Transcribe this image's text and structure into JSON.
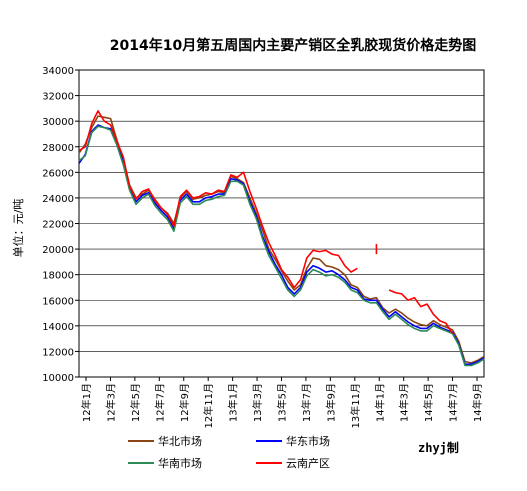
{
  "chart_data": {
    "type": "line",
    "title": "2014年10月第五周国内主要产销区全乳胶现货价格走势图",
    "ylabel": "单位：元/吨",
    "xlabel": "",
    "ylim": [
      10000,
      34000
    ],
    "yticks": [
      10000,
      12000,
      14000,
      16000,
      18000,
      20000,
      22000,
      24000,
      26000,
      28000,
      30000,
      32000,
      34000
    ],
    "x_tick_labels": [
      "12年1月",
      "12年3月",
      "12年5月",
      "12年7月",
      "12年9月",
      "12年11月",
      "13年1月",
      "13年3月",
      "13年5月",
      "13年7月",
      "13年9月",
      "13年11月",
      "14年1月",
      "14年3月",
      "14年5月",
      "14年7月",
      "14年9月"
    ],
    "grid": true,
    "legend_position": "bottom",
    "series": [
      {
        "name": "华北市场",
        "color": "#8B4513",
        "points": [
          [
            0,
            27500
          ],
          [
            0.5,
            28200
          ],
          [
            1,
            29500
          ],
          [
            1.5,
            30400
          ],
          [
            2,
            30300
          ],
          [
            2.5,
            30200
          ],
          [
            3,
            28500
          ],
          [
            3.5,
            27000
          ],
          [
            4,
            25000
          ],
          [
            4.5,
            24000
          ],
          [
            5,
            24300
          ],
          [
            5.5,
            24600
          ],
          [
            6,
            23900
          ],
          [
            6.5,
            23200
          ],
          [
            7,
            22800
          ],
          [
            7.5,
            22000
          ],
          [
            8,
            24000
          ],
          [
            8.5,
            24500
          ],
          [
            9,
            23900
          ],
          [
            9.5,
            24000
          ],
          [
            10,
            24200
          ],
          [
            10.5,
            24300
          ],
          [
            11,
            24500
          ],
          [
            11.5,
            24400
          ],
          [
            12,
            25700
          ],
          [
            12.5,
            25500
          ],
          [
            13,
            25200
          ],
          [
            13.5,
            24000
          ],
          [
            14,
            22800
          ],
          [
            14.5,
            21500
          ],
          [
            15,
            20000
          ],
          [
            15.5,
            19200
          ],
          [
            16,
            18300
          ],
          [
            16.5,
            17500
          ],
          [
            17,
            16800
          ],
          [
            17.5,
            17200
          ],
          [
            18,
            18500
          ],
          [
            18.5,
            19300
          ],
          [
            19,
            19200
          ],
          [
            19.5,
            18700
          ],
          [
            20,
            18600
          ],
          [
            20.5,
            18400
          ],
          [
            21,
            18000
          ],
          [
            21.5,
            17200
          ],
          [
            22,
            17000
          ],
          [
            22.5,
            16300
          ],
          [
            23,
            16100
          ],
          [
            23.5,
            16200
          ],
          [
            24,
            15400
          ],
          [
            24.5,
            15000
          ],
          [
            25,
            15300
          ],
          [
            25.5,
            15000
          ],
          [
            26,
            14600
          ],
          [
            26.5,
            14300
          ],
          [
            27,
            14100
          ],
          [
            27.5,
            14000
          ],
          [
            28,
            14400
          ],
          [
            28.5,
            14100
          ],
          [
            29,
            13900
          ],
          [
            29.5,
            13700
          ],
          [
            30,
            12800
          ],
          [
            30.5,
            11200
          ],
          [
            31,
            11100
          ],
          [
            31.5,
            11300
          ],
          [
            32,
            11600
          ]
        ]
      },
      {
        "name": "华东市场",
        "color": "#0000FF",
        "points": [
          [
            0,
            26700
          ],
          [
            0.5,
            27400
          ],
          [
            1,
            29200
          ],
          [
            1.5,
            29700
          ],
          [
            2,
            29500
          ],
          [
            2.5,
            29400
          ],
          [
            3,
            28200
          ],
          [
            3.5,
            26800
          ],
          [
            4,
            24800
          ],
          [
            4.5,
            23700
          ],
          [
            5,
            24200
          ],
          [
            5.5,
            24400
          ],
          [
            6,
            23600
          ],
          [
            6.5,
            23000
          ],
          [
            7,
            22500
          ],
          [
            7.5,
            21600
          ],
          [
            8,
            23800
          ],
          [
            8.5,
            24300
          ],
          [
            9,
            23700
          ],
          [
            9.5,
            23700
          ],
          [
            10,
            24000
          ],
          [
            10.5,
            24100
          ],
          [
            11,
            24300
          ],
          [
            11.5,
            24300
          ],
          [
            12,
            25500
          ],
          [
            12.5,
            25400
          ],
          [
            13,
            25100
          ],
          [
            13.5,
            23700
          ],
          [
            14,
            22600
          ],
          [
            14.5,
            21000
          ],
          [
            15,
            19800
          ],
          [
            15.5,
            18800
          ],
          [
            16,
            18000
          ],
          [
            16.5,
            17000
          ],
          [
            17,
            16500
          ],
          [
            17.5,
            17000
          ],
          [
            18,
            18200
          ],
          [
            18.5,
            18700
          ],
          [
            19,
            18500
          ],
          [
            19.5,
            18200
          ],
          [
            20,
            18300
          ],
          [
            20.5,
            18000
          ],
          [
            21,
            17600
          ],
          [
            21.5,
            17000
          ],
          [
            22,
            16800
          ],
          [
            22.5,
            16100
          ],
          [
            23,
            16000
          ],
          [
            23.5,
            16000
          ],
          [
            24,
            15300
          ],
          [
            24.5,
            14700
          ],
          [
            25,
            15100
          ],
          [
            25.5,
            14700
          ],
          [
            26,
            14300
          ],
          [
            26.5,
            14000
          ],
          [
            27,
            13800
          ],
          [
            27.5,
            13800
          ],
          [
            28,
            14200
          ],
          [
            28.5,
            13900
          ],
          [
            29,
            13700
          ],
          [
            29.5,
            13500
          ],
          [
            30,
            12600
          ],
          [
            30.5,
            11000
          ],
          [
            31,
            11000
          ],
          [
            31.5,
            11200
          ],
          [
            32,
            11500
          ]
        ]
      },
      {
        "name": "华南市场",
        "color": "#2E8B57",
        "points": [
          [
            0,
            26900
          ],
          [
            0.5,
            27300
          ],
          [
            1,
            29100
          ],
          [
            1.5,
            29600
          ],
          [
            2,
            29500
          ],
          [
            2.5,
            29300
          ],
          [
            3,
            28100
          ],
          [
            3.5,
            26600
          ],
          [
            4,
            24600
          ],
          [
            4.5,
            23500
          ],
          [
            5,
            24000
          ],
          [
            5.5,
            24300
          ],
          [
            6,
            23400
          ],
          [
            6.5,
            22800
          ],
          [
            7,
            22300
          ],
          [
            7.5,
            21400
          ],
          [
            8,
            23600
          ],
          [
            8.5,
            24100
          ],
          [
            9,
            23500
          ],
          [
            9.5,
            23500
          ],
          [
            10,
            23800
          ],
          [
            10.5,
            23900
          ],
          [
            11,
            24100
          ],
          [
            11.5,
            24200
          ],
          [
            12,
            25300
          ],
          [
            12.5,
            25300
          ],
          [
            13,
            25000
          ],
          [
            13.5,
            23500
          ],
          [
            14,
            22400
          ],
          [
            14.5,
            20800
          ],
          [
            15,
            19500
          ],
          [
            15.5,
            18600
          ],
          [
            16,
            17700
          ],
          [
            16.5,
            16800
          ],
          [
            17,
            16300
          ],
          [
            17.5,
            16800
          ],
          [
            18,
            17900
          ],
          [
            18.5,
            18400
          ],
          [
            19,
            18200
          ],
          [
            19.5,
            17900
          ],
          [
            20,
            18000
          ],
          [
            20.5,
            17800
          ],
          [
            21,
            17400
          ],
          [
            21.5,
            16800
          ],
          [
            22,
            16600
          ],
          [
            22.5,
            16000
          ],
          [
            23,
            15800
          ],
          [
            23.5,
            15800
          ],
          [
            24,
            15100
          ],
          [
            24.5,
            14500
          ],
          [
            25,
            14900
          ],
          [
            25.5,
            14500
          ],
          [
            26,
            14100
          ],
          [
            26.5,
            13800
          ],
          [
            27,
            13600
          ],
          [
            27.5,
            13600
          ],
          [
            28,
            14000
          ],
          [
            28.5,
            13800
          ],
          [
            29,
            13600
          ],
          [
            29.5,
            13400
          ],
          [
            30,
            12500
          ],
          [
            30.5,
            10900
          ],
          [
            31,
            10900
          ],
          [
            31.5,
            11100
          ],
          [
            32,
            11400
          ]
        ]
      },
      {
        "name": "云南产区",
        "color": "#FF0000",
        "points": [
          [
            0,
            27700
          ],
          [
            0.5,
            28000
          ],
          [
            1,
            29800
          ],
          [
            1.5,
            30800
          ],
          [
            2,
            30000
          ],
          [
            2.5,
            29700
          ],
          [
            3,
            28400
          ],
          [
            3.5,
            27200
          ],
          [
            4,
            24900
          ],
          [
            4.5,
            23900
          ],
          [
            5,
            24500
          ],
          [
            5.5,
            24700
          ],
          [
            6,
            23800
          ],
          [
            6.5,
            23200
          ],
          [
            7,
            22700
          ],
          [
            7.5,
            21800
          ],
          [
            8,
            24100
          ],
          [
            8.5,
            24600
          ],
          [
            9,
            24000
          ],
          [
            9.5,
            24100
          ],
          [
            10,
            24400
          ],
          [
            10.5,
            24300
          ],
          [
            11,
            24600
          ],
          [
            11.5,
            24500
          ],
          [
            12,
            25800
          ],
          [
            12.5,
            25600
          ],
          [
            13,
            26000
          ],
          [
            13.5,
            24500
          ],
          [
            14,
            23200
          ],
          [
            14.5,
            21800
          ],
          [
            15,
            20500
          ],
          [
            15.5,
            19500
          ],
          [
            16,
            18400
          ],
          [
            16.5,
            17800
          ],
          [
            17,
            17000
          ],
          [
            17.5,
            17600
          ],
          [
            18,
            19300
          ],
          [
            18.5,
            19900
          ],
          [
            19,
            19800
          ],
          [
            19.5,
            19900
          ],
          [
            20,
            19600
          ],
          [
            20.5,
            19500
          ],
          [
            21,
            18700
          ],
          [
            21.5,
            18200
          ],
          [
            22,
            18500
          ],
          [
            22.5,
            null
          ],
          [
            23,
            null
          ],
          [
            23.5,
            20000
          ],
          [
            24,
            null
          ],
          [
            24.5,
            16800
          ],
          [
            25,
            16600
          ],
          [
            25.5,
            16500
          ],
          [
            26,
            16000
          ],
          [
            26.5,
            16200
          ],
          [
            27,
            15500
          ],
          [
            27.5,
            15700
          ],
          [
            28,
            14900
          ],
          [
            28.5,
            14400
          ],
          [
            29,
            14200
          ],
          [
            29.5,
            13400
          ],
          [
            30,
            null
          ],
          [
            30.5,
            null
          ],
          [
            31,
            null
          ],
          [
            31.5,
            null
          ],
          [
            32,
            null
          ]
        ]
      }
    ],
    "watermark": "zhyj制"
  }
}
